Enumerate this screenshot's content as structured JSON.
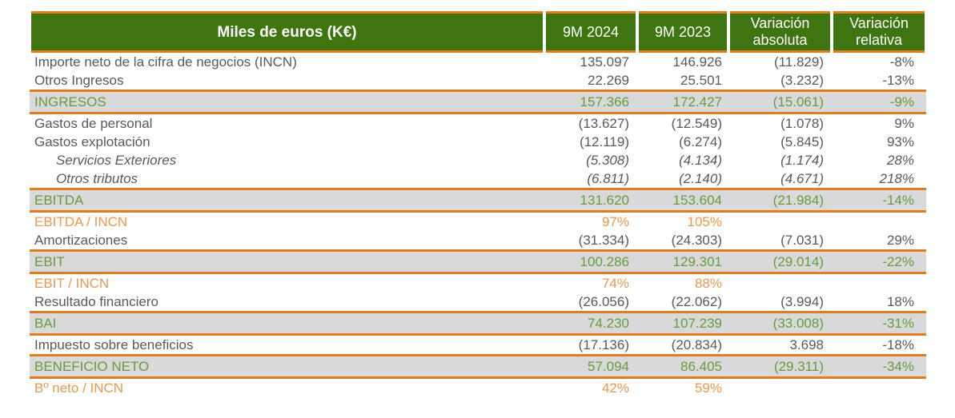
{
  "colors": {
    "header_green": "#3E7511",
    "orange_line": "#E07D1E",
    "green_accent_text": "#669B41",
    "orange_accent_text": "#E9984F",
    "highlight_row_gray": "#D9D9D9",
    "body_text": "#595959",
    "header_text": "#FFFFFF"
  },
  "table": {
    "header": {
      "label": "Miles de euros (K€)",
      "columns": [
        "9M 2024",
        "9M 2023",
        "Variación absoluta",
        "Variación relativa"
      ]
    },
    "rows": [
      {
        "style": "normal",
        "label": "Importe neto de la cifra de negocios (INCN)",
        "y2024": "135.097",
        "y2023": "146.926",
        "abs": "(11.829)",
        "rel": "-8%"
      },
      {
        "style": "normal",
        "label": "Otros Ingresos",
        "y2024": "22.269",
        "y2023": "25.501",
        "abs": "(3.232)",
        "rel": "-13%"
      },
      {
        "style": "total",
        "label": "INGRESOS",
        "y2024": "157.366",
        "y2023": "172.427",
        "abs": "(15.061)",
        "rel": "-9%"
      },
      {
        "style": "normal",
        "label": "Gastos de personal",
        "y2024": "(13.627)",
        "y2023": "(12.549)",
        "abs": "(1.078)",
        "rel": "9%"
      },
      {
        "style": "normal",
        "label": "Gastos explotación",
        "y2024": "(12.119)",
        "y2023": "(6.274)",
        "abs": "(5.845)",
        "rel": "93%"
      },
      {
        "style": "detail",
        "label": "Servicios Exteriores",
        "y2024": "(5.308)",
        "y2023": "(4.134)",
        "abs": "(1.174)",
        "rel": "28%"
      },
      {
        "style": "detail",
        "label": "Otros tributos",
        "y2024": "(6.811)",
        "y2023": "(2.140)",
        "abs": "(4.671)",
        "rel": "218%"
      },
      {
        "style": "total",
        "label": "EBITDA",
        "y2024": "131.620",
        "y2023": "153.604",
        "abs": "(21.984)",
        "rel": "-14%"
      },
      {
        "style": "ratio",
        "label": "EBITDA / INCN",
        "y2024": "97%",
        "y2023": "105%",
        "abs": "",
        "rel": ""
      },
      {
        "style": "normal",
        "label": "Amortizaciones",
        "y2024": "(31.334)",
        "y2023": "(24.303)",
        "abs": "(7.031)",
        "rel": "29%"
      },
      {
        "style": "total",
        "label": "EBIT",
        "y2024": "100.286",
        "y2023": "129.301",
        "abs": "(29.014)",
        "rel": "-22%"
      },
      {
        "style": "ratio",
        "label": "EBIT / INCN",
        "y2024": "74%",
        "y2023": "88%",
        "abs": "",
        "rel": ""
      },
      {
        "style": "normal",
        "label": "Resultado financiero",
        "y2024": "(26.056)",
        "y2023": "(22.062)",
        "abs": "(3.994)",
        "rel": "18%"
      },
      {
        "style": "total",
        "label": "BAI",
        "y2024": "74.230",
        "y2023": "107.239",
        "abs": "(33.008)",
        "rel": "-31%"
      },
      {
        "style": "normal",
        "label": "Impuesto sobre beneficios",
        "y2024": "(17.136)",
        "y2023": "(20.834)",
        "abs": "3.698",
        "rel": "-18%"
      },
      {
        "style": "total",
        "label": "BENEFICIO NETO",
        "y2024": "57.094",
        "y2023": "86.405",
        "abs": "(29.311)",
        "rel": "-34%"
      },
      {
        "style": "ratio",
        "label": "Bº neto / INCN",
        "y2024": "42%",
        "y2023": "59%",
        "abs": "",
        "rel": ""
      }
    ]
  },
  "chart_data": {
    "type": "table",
    "title": "Miles de euros (K€)",
    "columns": [
      "Miles de euros (K€)",
      "9M 2024",
      "9M 2023",
      "Variación absoluta",
      "Variación relativa"
    ],
    "rows": [
      [
        "Importe neto de la cifra de negocios (INCN)",
        "135.097",
        "146.926",
        "(11.829)",
        "-8%"
      ],
      [
        "Otros Ingresos",
        "22.269",
        "25.501",
        "(3.232)",
        "-13%"
      ],
      [
        "INGRESOS",
        "157.366",
        "172.427",
        "(15.061)",
        "-9%"
      ],
      [
        "Gastos de personal",
        "(13.627)",
        "(12.549)",
        "(1.078)",
        "9%"
      ],
      [
        "Gastos explotación",
        "(12.119)",
        "(6.274)",
        "(5.845)",
        "93%"
      ],
      [
        "Servicios Exteriores",
        "(5.308)",
        "(4.134)",
        "(1.174)",
        "28%"
      ],
      [
        "Otros tributos",
        "(6.811)",
        "(2.140)",
        "(4.671)",
        "218%"
      ],
      [
        "EBITDA",
        "131.620",
        "153.604",
        "(21.984)",
        "-14%"
      ],
      [
        "EBITDA / INCN",
        "97%",
        "105%",
        "",
        ""
      ],
      [
        "Amortizaciones",
        "(31.334)",
        "(24.303)",
        "(7.031)",
        "29%"
      ],
      [
        "EBIT",
        "100.286",
        "129.301",
        "(29.014)",
        "-22%"
      ],
      [
        "EBIT / INCN",
        "74%",
        "88%",
        "",
        ""
      ],
      [
        "Resultado financiero",
        "(26.056)",
        "(22.062)",
        "(3.994)",
        "18%"
      ],
      [
        "BAI",
        "74.230",
        "107.239",
        "(33.008)",
        "-31%"
      ],
      [
        "Impuesto sobre beneficios",
        "(17.136)",
        "(20.834)",
        "3.698",
        "-18%"
      ],
      [
        "BENEFICIO NETO",
        "57.094",
        "86.405",
        "(29.311)",
        "-34%"
      ],
      [
        "Bº neto / INCN",
        "42%",
        "59%",
        "",
        ""
      ]
    ]
  }
}
